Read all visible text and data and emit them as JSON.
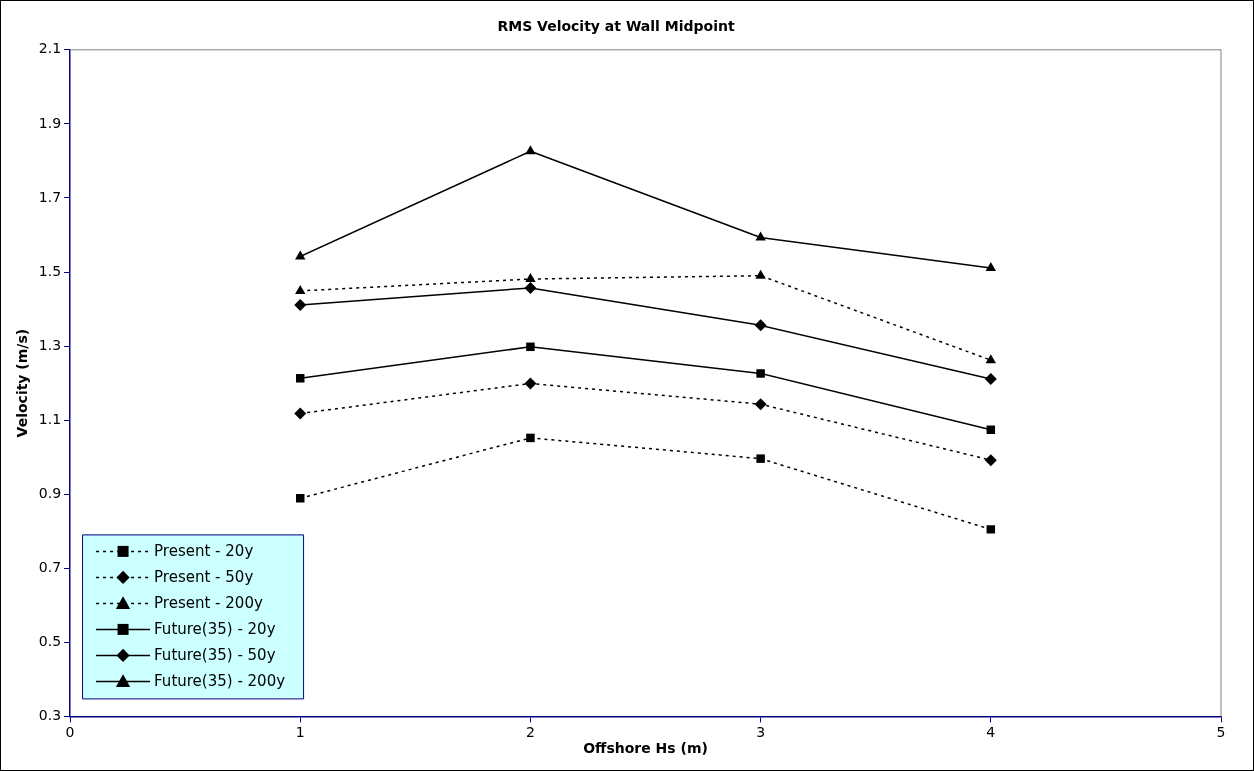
{
  "chart_data": {
    "type": "line",
    "title": "RMS Velocity at Wall Midpoint",
    "xlabel": "Offshore Hs (m)",
    "ylabel": "Velocity (m/s)",
    "x": [
      1,
      2,
      3,
      4
    ],
    "xlim": [
      0,
      5
    ],
    "xticks": [
      0,
      1,
      2,
      3,
      4,
      5
    ],
    "ylim": [
      0.3,
      2.1
    ],
    "yticks": [
      0.3,
      0.5,
      0.7,
      0.9,
      1.1,
      1.3,
      1.5,
      1.7,
      1.9,
      2.1
    ],
    "grid": false,
    "legend": "bottom left",
    "series": [
      {
        "name": "Present - 20y",
        "color": "#000000",
        "marker": "square",
        "line_style": "dotted",
        "values": [
          0.889,
          1.052,
          0.996,
          0.805
        ]
      },
      {
        "name": "Present - 50y",
        "color": "#000000",
        "marker": "diamond",
        "line_style": "dotted",
        "values": [
          1.118,
          1.199,
          1.143,
          0.992
        ]
      },
      {
        "name": "Present - 200y",
        "color": "#000000",
        "marker": "triangle",
        "line_style": "dotted",
        "values": [
          1.449,
          1.481,
          1.49,
          1.262
        ]
      },
      {
        "name": "Future(35) - 20y",
        "color": "#000000",
        "marker": "square",
        "line_style": "solid",
        "values": [
          1.213,
          1.298,
          1.226,
          1.074
        ]
      },
      {
        "name": "Future(35) - 50y",
        "color": "#000000",
        "marker": "diamond",
        "line_style": "solid",
        "values": [
          1.411,
          1.457,
          1.356,
          1.211
        ]
      },
      {
        "name": "Future(35) - 200y",
        "color": "#000000",
        "marker": "triangle",
        "line_style": "solid",
        "values": [
          1.542,
          1.826,
          1.593,
          1.511
        ]
      }
    ]
  }
}
